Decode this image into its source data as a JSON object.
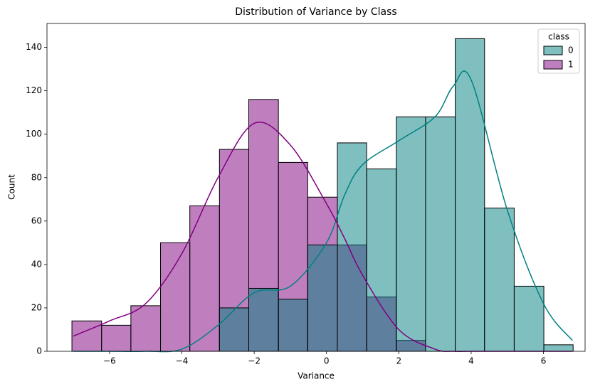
{
  "chart_data": {
    "type": "histogram",
    "title": "Distribution of Variance by Class",
    "xlabel": "Variance",
    "ylabel": "Count",
    "bins": [
      -7.04,
      -6.22,
      -5.41,
      -4.59,
      -3.78,
      -2.96,
      -2.15,
      -1.33,
      -0.52,
      0.3,
      1.11,
      1.93,
      2.74,
      3.56,
      4.37,
      5.19,
      6.01,
      6.82
    ],
    "series": [
      {
        "name": "0",
        "color": "#008080",
        "values": [
          0,
          0,
          0,
          0,
          0,
          20,
          29,
          24,
          49,
          96,
          84,
          108,
          108,
          144,
          66,
          30,
          3
        ],
        "kde": {
          "x": [
            -7,
            -6,
            -5,
            -4,
            -3,
            -2,
            -1,
            0,
            0.5,
            1,
            2,
            3,
            3.5,
            4,
            5,
            6,
            6.8
          ],
          "values": [
            0,
            0,
            0,
            1,
            12,
            27,
            30,
            50,
            72,
            86,
            97,
            108,
            122,
            125,
            65,
            22,
            5
          ]
        }
      },
      {
        "name": "1",
        "color": "#800080",
        "values": [
          14,
          12,
          21,
          50,
          67,
          93,
          116,
          87,
          71,
          49,
          25,
          5,
          0,
          0,
          0,
          0,
          0
        ],
        "kde": {
          "x": [
            -7,
            -6,
            -5,
            -4,
            -3,
            -2,
            -1,
            0,
            0.5,
            1,
            2,
            3,
            3.5,
            4,
            5,
            6,
            6.8
          ],
          "values": [
            7,
            14,
            22,
            45,
            80,
            105,
            95,
            68,
            52,
            35,
            10,
            1,
            0,
            0,
            0,
            0,
            0
          ]
        }
      }
    ],
    "legend_title": "class",
    "legend": "upper right",
    "xlim": [
      -7.73,
      7.15
    ],
    "ylim": [
      0,
      151
    ],
    "xticks": [
      {
        "value": -6,
        "label": "−6"
      },
      {
        "value": -4,
        "label": "−4"
      },
      {
        "value": -2,
        "label": "−2"
      },
      0,
      2,
      4,
      6
    ],
    "yticks": [
      0,
      20,
      40,
      60,
      80,
      100,
      120,
      140
    ],
    "grid": false
  }
}
